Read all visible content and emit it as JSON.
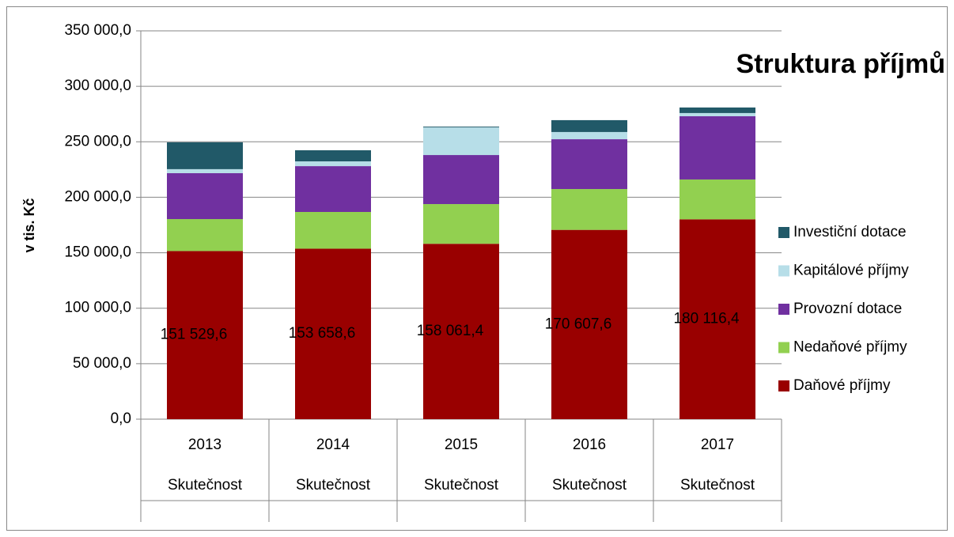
{
  "chart_data": {
    "type": "stacked_bar",
    "title": "Struktura příjmů",
    "y_label": "v tis. Kč",
    "categories": [
      "2013",
      "2014",
      "2015",
      "2016",
      "2017"
    ],
    "subcategories": [
      "Skutečnost",
      "Skutečnost",
      "Skutečnost",
      "Skutečnost",
      "Skutečnost"
    ],
    "series": [
      {
        "name": "Daňové příjmy",
        "color": "#990000",
        "values": [
          151529.6,
          153658.6,
          158061.4,
          170607.6,
          180116.4
        ],
        "value_labels": [
          "151 529,6",
          "153 658,6",
          "158 061,4",
          "170 607,6",
          "180 116,4"
        ]
      },
      {
        "name": "Nedaňové příjmy",
        "color": "#92d050",
        "values": [
          28800,
          33100,
          35800,
          36800,
          35900
        ]
      },
      {
        "name": "Provozní dotace",
        "color": "#7030a0",
        "values": [
          41400,
          41300,
          44200,
          44900,
          57000
        ]
      },
      {
        "name": "Kapitálové příjmy",
        "color": "#b7dee8",
        "values": [
          3600,
          4300,
          24900,
          6500,
          2900
        ]
      },
      {
        "name": "Investiční dotace",
        "color": "#215968",
        "values": [
          24200,
          10000,
          700,
          10700,
          5000
        ]
      }
    ],
    "ylim": [
      0,
      350000
    ],
    "yticks": [
      {
        "value": 0,
        "label": "0,0"
      },
      {
        "value": 50000,
        "label": "50 000,0"
      },
      {
        "value": 100000,
        "label": "100 000,0"
      },
      {
        "value": 150000,
        "label": "150 000,0"
      },
      {
        "value": 200000,
        "label": "200 000,0"
      },
      {
        "value": 250000,
        "label": "250 000,0"
      },
      {
        "value": 300000,
        "label": "300 000,0"
      },
      {
        "value": 350000,
        "label": "350 000,0"
      }
    ],
    "grid": true,
    "legend": "right"
  }
}
